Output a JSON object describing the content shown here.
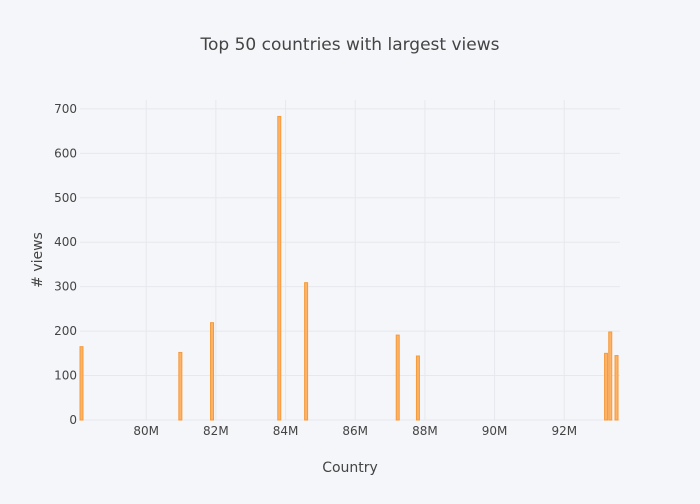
{
  "chart_data": {
    "type": "bar",
    "title": "Top 50 countries with largest views",
    "xlabel": "Country",
    "ylabel": "# views",
    "xlim": [
      78100000,
      93600000
    ],
    "ylim": [
      0,
      720
    ],
    "x_ticks": [
      80000000,
      82000000,
      84000000,
      86000000,
      88000000,
      90000000,
      92000000
    ],
    "x_tick_labels": [
      "80M",
      "82M",
      "84M",
      "86M",
      "88M",
      "90M",
      "92M"
    ],
    "y_ticks": [
      0,
      100,
      200,
      300,
      400,
      500,
      600,
      700
    ],
    "y_tick_labels": [
      "0",
      "100",
      "200",
      "300",
      "400",
      "500",
      "600",
      "700"
    ],
    "grid": true,
    "bar_color": "#ffb366",
    "bar_edge_color": "#f59a3a",
    "background": "#f5f6f9",
    "series": [
      {
        "x": [
          78120000,
          80980000,
          81890000,
          83820000,
          84590000,
          87220000,
          87800000,
          93200000,
          93320000,
          93500000
        ],
        "values": [
          165,
          152,
          219,
          683,
          309,
          191,
          144,
          150,
          198,
          145
        ]
      }
    ]
  }
}
